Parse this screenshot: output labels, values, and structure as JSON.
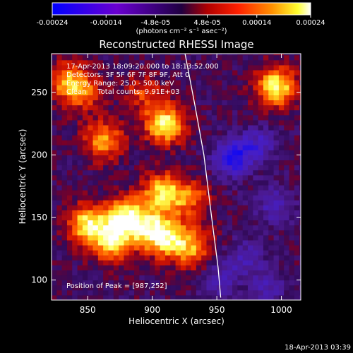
{
  "chart_data": {
    "type": "heatmap",
    "title": "Reconstructed RHESSI Image",
    "xlabel": "Heliocentric X (arcsec)",
    "ylabel": "Heliocentric Y (arcsec)",
    "xlim": [
      822,
      1015
    ],
    "ylim": [
      84,
      281
    ],
    "xticks": [
      850,
      900,
      950,
      1000
    ],
    "yticks": [
      100,
      150,
      200,
      250
    ],
    "colorbar": {
      "range": [
        -0.00024,
        0.00024
      ],
      "tick_values": [
        -0.00024,
        -0.00014,
        -4.8e-05,
        4.8e-05,
        0.00014,
        0.00024
      ],
      "tick_labels": [
        "-0.00024",
        "-0.00014",
        "-4.8e-05",
        "4.8e-05",
        "0.00014",
        "0.00024"
      ],
      "units": "(photons cm⁻² s⁻¹ asec⁻²)",
      "colormap": "blue-purple-red-yellow-white"
    },
    "annotations": [
      "17-Apr-2013 18:09:20.000 to 18:13:52.000",
      "Detectors: 3F 5F 6F 7F 8F 9F, Att 0",
      "Energy Range: 25.0 - 50.0 keV",
      "Clean     Total counts: 9.91E+03"
    ],
    "peak_label": "Position of Peak = [987,252]",
    "peak": {
      "x": 987,
      "y": 252
    },
    "limb_curve": [
      [
        925,
        283
      ],
      [
        933,
        240
      ],
      [
        940,
        200
      ],
      [
        946,
        150
      ],
      [
        951,
        110
      ],
      [
        953,
        86
      ]
    ],
    "sources": [
      {
        "x": 880,
        "y": 150,
        "strength": 1.0
      },
      {
        "x": 908,
        "y": 170,
        "strength": 0.85
      },
      {
        "x": 850,
        "y": 145,
        "strength": 0.9
      },
      {
        "x": 868,
        "y": 130,
        "strength": 0.75
      },
      {
        "x": 900,
        "y": 140,
        "strength": 0.8
      },
      {
        "x": 915,
        "y": 132,
        "strength": 0.7
      },
      {
        "x": 933,
        "y": 125,
        "strength": 0.55
      },
      {
        "x": 862,
        "y": 212,
        "strength": 0.7
      },
      {
        "x": 910,
        "y": 225,
        "strength": 0.95
      },
      {
        "x": 996,
        "y": 255,
        "strength": 0.95
      },
      {
        "x": 835,
        "y": 260,
        "strength": 0.6
      },
      {
        "x": 846,
        "y": 250,
        "strength": 0.45
      },
      {
        "x": 893,
        "y": 250,
        "strength": 0.4
      },
      {
        "x": 930,
        "y": 165,
        "strength": 0.5
      }
    ],
    "negative_regions": [
      {
        "x": 962,
        "y": 198,
        "strength": 1.0
      },
      {
        "x": 982,
        "y": 208,
        "strength": 0.6
      },
      {
        "x": 995,
        "y": 160,
        "strength": 0.55
      },
      {
        "x": 972,
        "y": 118,
        "strength": 0.5
      },
      {
        "x": 990,
        "y": 95,
        "strength": 0.45
      },
      {
        "x": 952,
        "y": 100,
        "strength": 0.5
      }
    ]
  },
  "timestamp": "18-Apr-2013 03:39"
}
